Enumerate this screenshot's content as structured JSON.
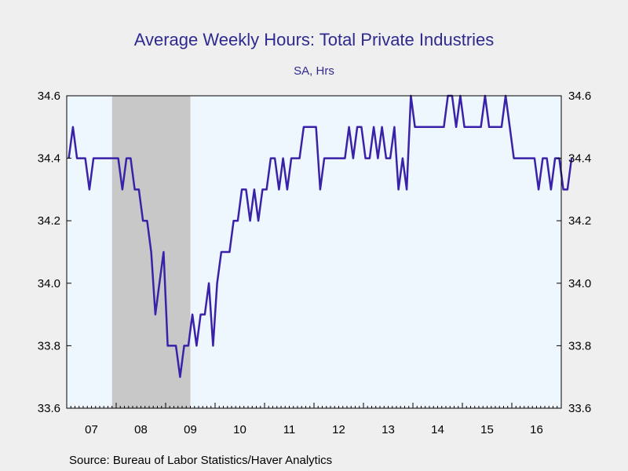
{
  "chart_data": {
    "type": "line",
    "title": "Average Weekly Hours: Total Private Industries",
    "subtitle": "SA, Hrs",
    "source": "Source:  Bureau of Labor Statistics/Haver Analytics",
    "ylim": [
      33.6,
      34.6
    ],
    "yticks": [
      "34.6",
      "34.4",
      "34.2",
      "34.0",
      "33.8",
      "33.6"
    ],
    "xtick_labels": [
      "07",
      "08",
      "09",
      "10",
      "11",
      "12",
      "13",
      "14",
      "15",
      "16"
    ],
    "x_start": "2007-01",
    "grid": false,
    "recession_shade": {
      "start": "2007-12",
      "end": "2009-06"
    },
    "colors": {
      "line": "#3a22a8",
      "shade": "#c8c8c8",
      "plot_bg": "#eef6fe",
      "text": "#2e2a8e"
    },
    "series": [
      {
        "values": [
          34.4,
          34.5,
          34.4,
          34.4,
          34.4,
          34.3,
          34.4,
          34.4,
          34.4,
          34.4,
          34.4,
          34.4,
          34.4,
          34.3,
          34.4,
          34.4,
          34.3,
          34.3,
          34.2,
          34.2,
          34.1,
          33.9,
          34.0,
          34.1,
          33.8,
          33.8,
          33.8,
          33.7,
          33.8,
          33.8,
          33.9,
          33.8,
          33.9,
          33.9,
          34.0,
          33.8,
          34.0,
          34.1,
          34.1,
          34.1,
          34.2,
          34.2,
          34.3,
          34.3,
          34.2,
          34.3,
          34.2,
          34.3,
          34.3,
          34.4,
          34.4,
          34.3,
          34.4,
          34.3,
          34.4,
          34.4,
          34.4,
          34.5,
          34.5,
          34.5,
          34.5,
          34.3,
          34.4,
          34.4,
          34.4,
          34.4,
          34.4,
          34.4,
          34.5,
          34.4,
          34.5,
          34.5,
          34.4,
          34.4,
          34.5,
          34.4,
          34.5,
          34.4,
          34.4,
          34.5,
          34.3,
          34.4,
          34.3,
          34.6,
          34.5,
          34.5,
          34.5,
          34.5,
          34.5,
          34.5,
          34.5,
          34.5,
          34.6,
          34.6,
          34.5,
          34.6,
          34.5,
          34.5,
          34.5,
          34.5,
          34.5,
          34.6,
          34.5,
          34.5,
          34.5,
          34.5,
          34.6,
          34.5,
          34.4,
          34.4,
          34.4,
          34.4,
          34.4,
          34.4,
          34.3,
          34.4,
          34.4,
          34.3,
          34.4,
          34.4,
          34.3,
          34.3,
          34.4
        ]
      }
    ]
  }
}
